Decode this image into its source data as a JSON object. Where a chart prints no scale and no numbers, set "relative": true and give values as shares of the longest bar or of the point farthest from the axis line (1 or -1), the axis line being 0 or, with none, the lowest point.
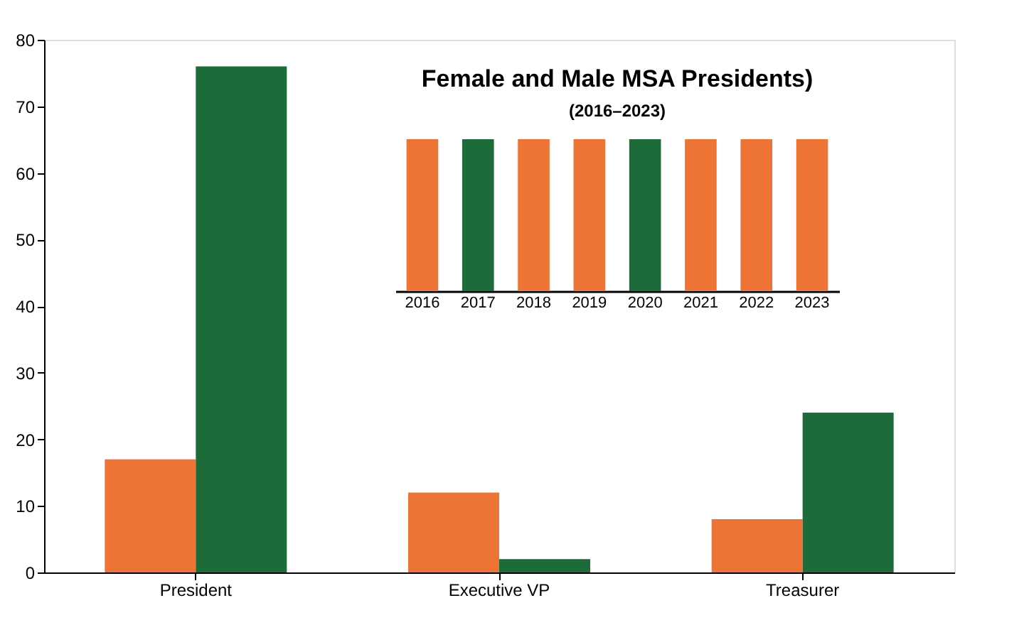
{
  "chart_data": [
    {
      "type": "bar",
      "categories": [
        "President",
        "Executive VP",
        "Treasurer"
      ],
      "series": [
        {
          "color": "#ed7435",
          "values": [
            17,
            12,
            8
          ]
        },
        {
          "color": "#1e6b3a",
          "values": [
            76,
            2,
            24
          ]
        }
      ],
      "ylim": [
        0,
        80
      ],
      "yticks": [
        0,
        10,
        20,
        30,
        40,
        50,
        60,
        70,
        80
      ],
      "grid": false,
      "legend": false
    },
    {
      "type": "bar",
      "title": "Female and Male MSA Presidents)",
      "subtitle": "(2016–2023)",
      "relative": true,
      "categories": [
        "2016",
        "2017",
        "2018",
        "2019",
        "2020",
        "2021",
        "2022",
        "2023"
      ],
      "values": [
        1,
        1,
        1,
        1,
        1,
        1,
        1,
        1
      ],
      "colors": [
        "#ed7435",
        "#1e6b3a",
        "#ed7435",
        "#ed7435",
        "#1e6b3a",
        "#ed7435",
        "#ed7435",
        "#ed7435"
      ],
      "legend": false
    }
  ]
}
